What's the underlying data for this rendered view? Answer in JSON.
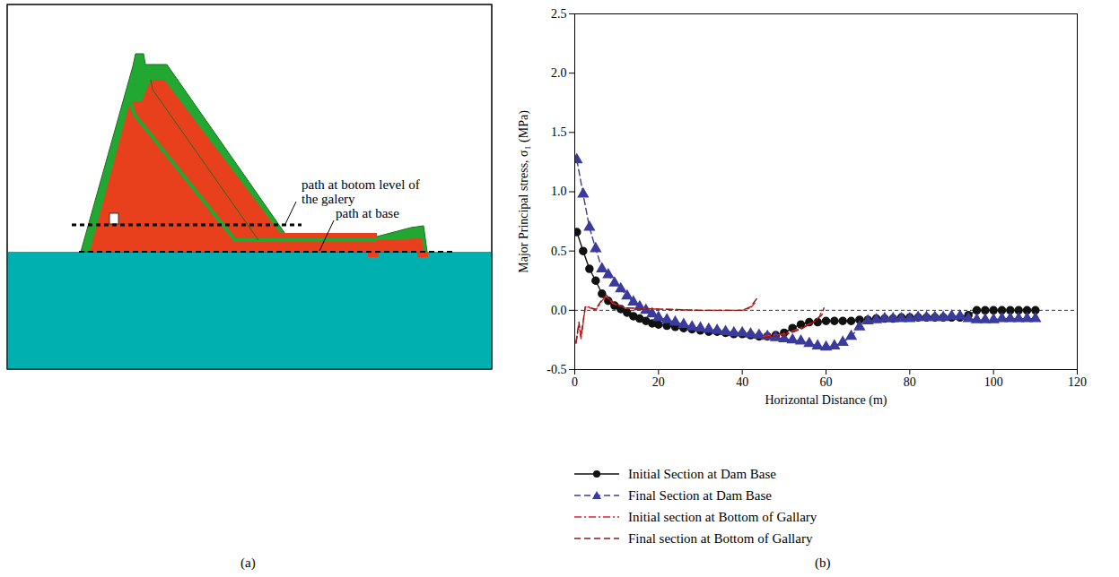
{
  "chart_data": {
    "type": "line",
    "panel_label": "(b)",
    "x_label": "Horizontal Distance (m)",
    "y_label": "Major Principal stress, σ₁ (MPa)",
    "xlim": [
      0,
      120
    ],
    "xticks": [
      0,
      20,
      40,
      60,
      80,
      100,
      120
    ],
    "ylim": [
      -0.5,
      2.5
    ],
    "yticks": [
      -0.5,
      {
        "value": 0,
        "label": "0.0"
      },
      0.5,
      {
        "value": 1,
        "label": "1.0"
      },
      1.5,
      {
        "value": 2,
        "label": "2.0"
      },
      2.5
    ],
    "hline": 0,
    "grid": false,
    "legend": "bottom",
    "series": [
      {
        "name": "Initial Section at Dam Base",
        "color": "#111111",
        "marker": "circle",
        "line_style": "solid",
        "x": [
          0.5,
          2,
          3.5,
          5,
          6.5,
          8,
          9.5,
          11,
          12.5,
          14,
          15.5,
          17,
          18.5,
          20,
          22,
          24,
          26,
          28,
          30,
          32,
          34,
          36,
          38,
          40,
          42,
          44,
          46,
          48,
          50,
          52,
          54,
          56,
          58,
          60,
          62,
          64,
          66,
          68,
          70,
          72,
          74,
          76,
          78,
          80,
          82,
          84,
          86,
          88,
          90,
          92,
          94,
          96,
          98,
          100,
          102,
          104,
          106,
          108,
          110
        ],
        "values": [
          0.66,
          0.5,
          0.35,
          0.25,
          0.14,
          0.08,
          0.04,
          0.01,
          -0.02,
          -0.05,
          -0.07,
          -0.09,
          -0.11,
          -0.12,
          -0.13,
          -0.14,
          -0.15,
          -0.16,
          -0.17,
          -0.18,
          -0.18,
          -0.19,
          -0.2,
          -0.2,
          -0.21,
          -0.22,
          -0.22,
          -0.21,
          -0.19,
          -0.15,
          -0.12,
          -0.1,
          -0.1,
          -0.09,
          -0.09,
          -0.09,
          -0.09,
          -0.08,
          -0.08,
          -0.07,
          -0.07,
          -0.07,
          -0.06,
          -0.06,
          -0.06,
          -0.06,
          -0.06,
          -0.06,
          -0.06,
          -0.06,
          -0.04,
          0.0,
          0.0,
          0.0,
          0.0,
          0.0,
          0.0,
          0.0,
          0.0
        ]
      },
      {
        "name": "Final Section at Dam Base",
        "color": "#3b3b9e",
        "marker": "triangle",
        "line_style": "dashed",
        "x": [
          0.5,
          2,
          3.5,
          5,
          6.5,
          8,
          9.5,
          11,
          12.5,
          14,
          15.5,
          17,
          18.5,
          20,
          22,
          24,
          26,
          28,
          30,
          32,
          34,
          36,
          38,
          40,
          42,
          44,
          46,
          48,
          50,
          52,
          54,
          56,
          58,
          60,
          62,
          64,
          66,
          68,
          70,
          72,
          74,
          76,
          78,
          80,
          82,
          84,
          86,
          88,
          90,
          92,
          94,
          96,
          98,
          100,
          102,
          104,
          106,
          108,
          110
        ],
        "values": [
          1.27,
          0.98,
          0.7,
          0.52,
          0.35,
          0.3,
          0.23,
          0.18,
          0.12,
          0.07,
          0.03,
          0.0,
          -0.03,
          -0.06,
          -0.08,
          -0.1,
          -0.12,
          -0.14,
          -0.15,
          -0.16,
          -0.17,
          -0.18,
          -0.19,
          -0.19,
          -0.2,
          -0.21,
          -0.22,
          -0.23,
          -0.24,
          -0.25,
          -0.26,
          -0.28,
          -0.3,
          -0.31,
          -0.3,
          -0.27,
          -0.22,
          -0.14,
          -0.09,
          -0.08,
          -0.07,
          -0.07,
          -0.07,
          -0.07,
          -0.06,
          -0.06,
          -0.06,
          -0.06,
          -0.05,
          -0.05,
          -0.07,
          -0.08,
          -0.08,
          -0.08,
          -0.07,
          -0.07,
          -0.07,
          -0.07,
          -0.07
        ]
      },
      {
        "name": "Initial section at Bottom of Gallary",
        "color": "#e02424",
        "marker": "none",
        "line_style": "dashdot",
        "x": [
          0.3,
          1,
          1.5,
          2.5,
          3.5,
          5,
          6.5,
          7.5,
          9,
          12,
          20,
          30,
          40,
          42,
          43,
          null,
          45,
          50,
          54,
          57,
          58.5,
          59
        ],
        "values": [
          -0.28,
          -0.12,
          -0.24,
          0.02,
          0.03,
          0.0,
          0.08,
          0.12,
          0.06,
          0.02,
          0.01,
          0.0,
          0.0,
          0.02,
          0.06,
          null,
          -0.22,
          -0.2,
          -0.15,
          -0.1,
          -0.05,
          0.0
        ]
      },
      {
        "name": "Final section at Bottom of Gallary",
        "color": "#8b1a1a",
        "marker": "none",
        "line_style": "dashed",
        "x": [
          0.3,
          1,
          1.5,
          2.5,
          3.5,
          5,
          6.5,
          7.5,
          9,
          12,
          20,
          30,
          40,
          42,
          43.5,
          null,
          45,
          50,
          54,
          57,
          59,
          59.5
        ],
        "values": [
          -0.27,
          -0.1,
          -0.22,
          0.03,
          0.02,
          0.01,
          0.09,
          0.13,
          0.07,
          0.02,
          0.01,
          0.0,
          0.0,
          0.03,
          0.1,
          null,
          -0.23,
          -0.21,
          -0.16,
          -0.1,
          -0.04,
          0.02
        ]
      }
    ]
  },
  "diagram": {
    "panel_label": "(a)",
    "labels": [
      "path at botom level of the galery",
      "path at base"
    ]
  }
}
